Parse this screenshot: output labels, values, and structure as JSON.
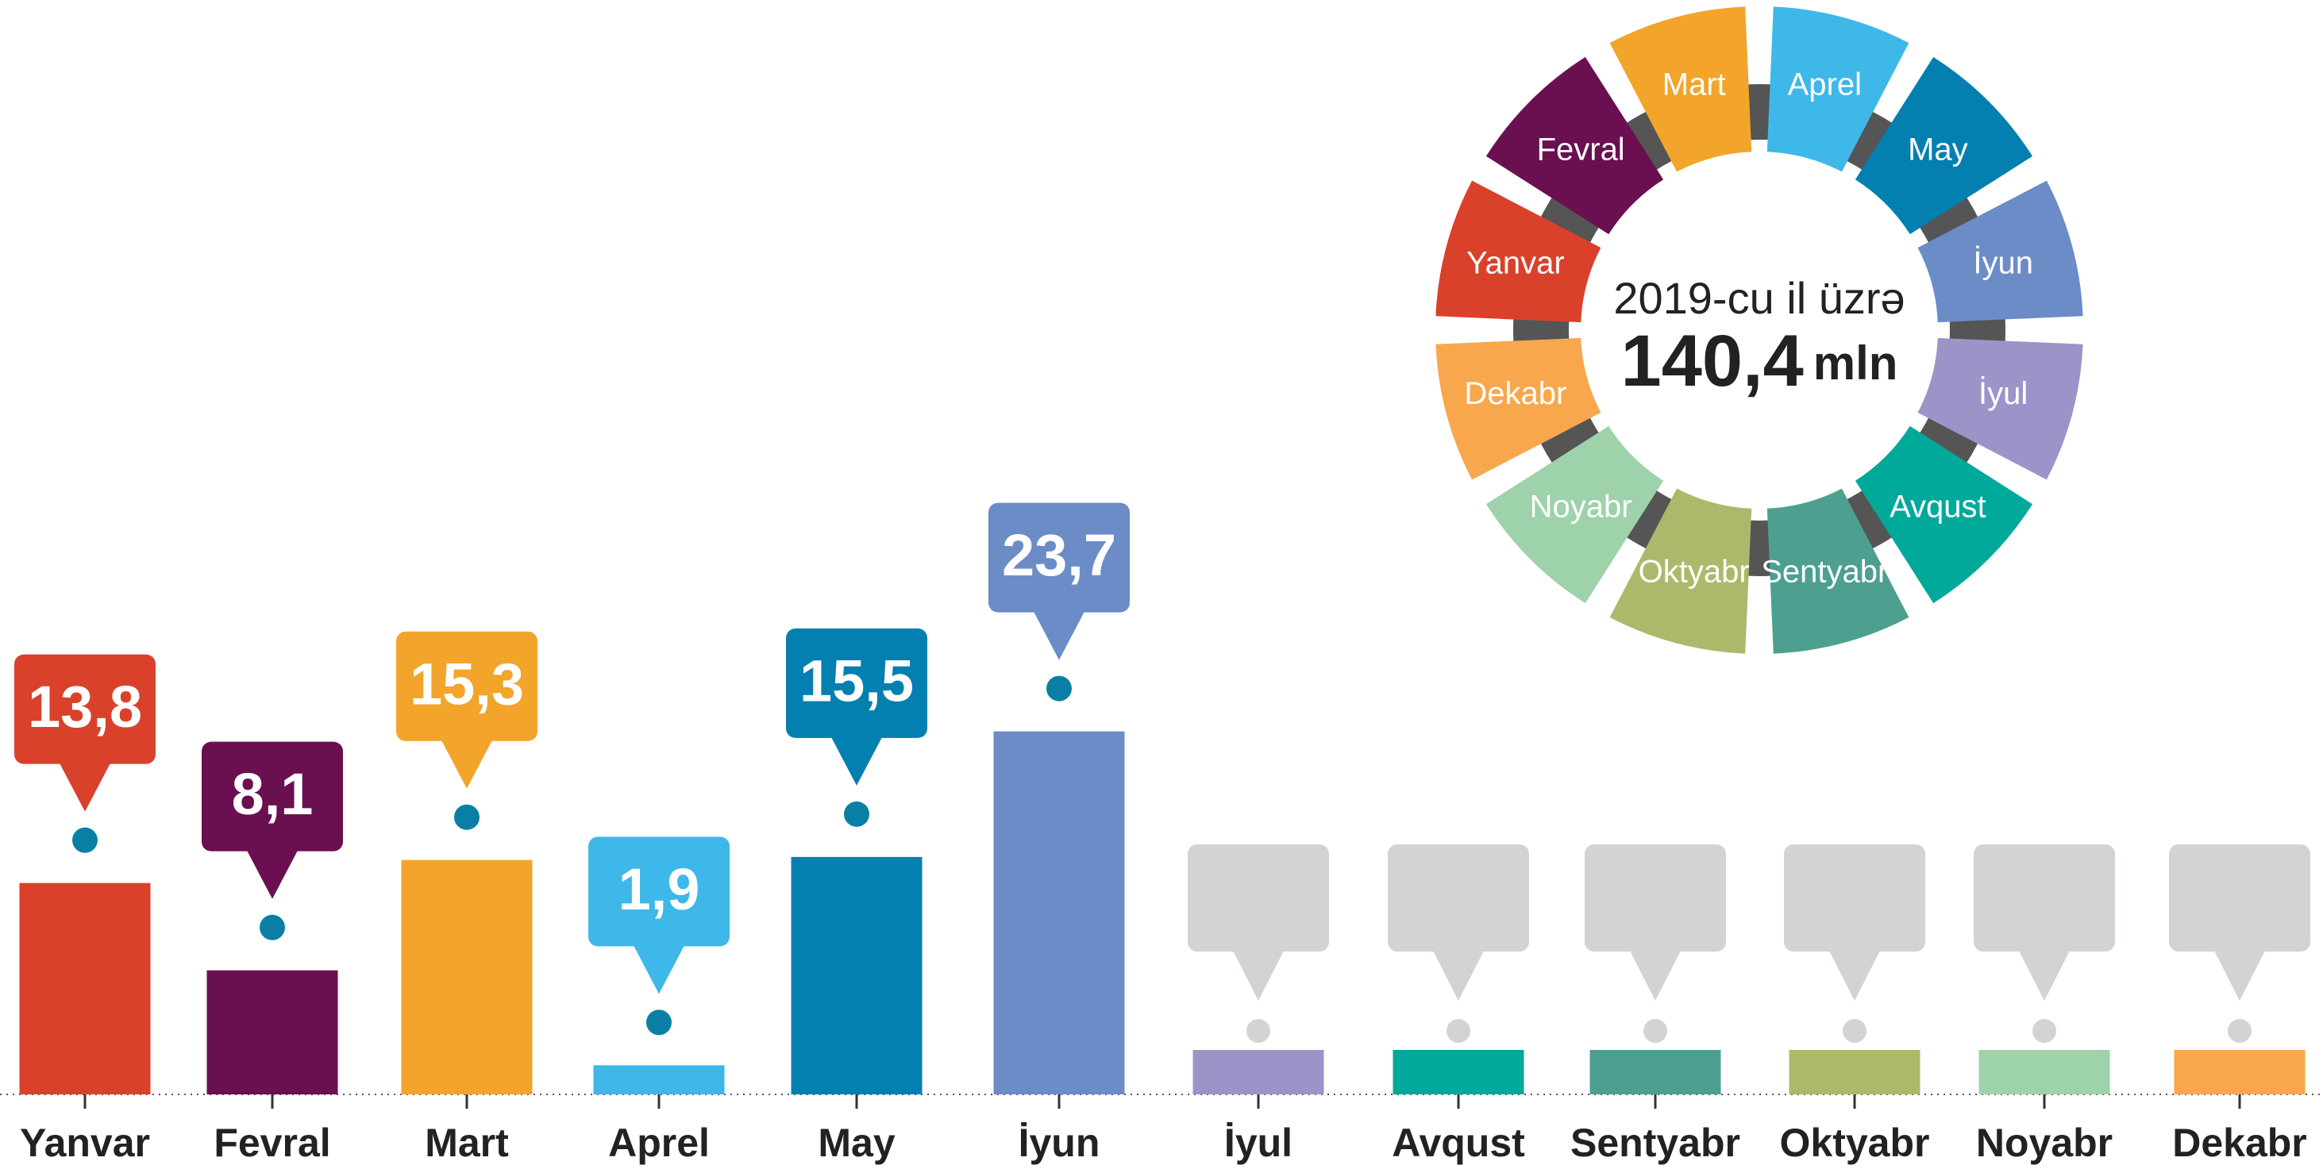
{
  "chart_data": {
    "type": "bar",
    "categories": [
      "Yanvar",
      "Fevral",
      "Mart",
      "Aprel",
      "May",
      "İyun",
      "İyul",
      "Avqust",
      "Sentyabr",
      "Oktyabr",
      "Noyabr",
      "Dekabr"
    ],
    "values": [
      13.8,
      8.1,
      15.3,
      1.9,
      15.5,
      23.7,
      null,
      null,
      null,
      null,
      null,
      null
    ],
    "value_labels": [
      "13,8",
      "8,1",
      "15,3",
      "1,9",
      "15,5",
      "23,7",
      null,
      null,
      null,
      null,
      null,
      null
    ],
    "colors": [
      "#d9412b",
      "#6a0f4f",
      "#f2a42b",
      "#3db8e8",
      "#0480b0",
      "#6b8cc7",
      "#9c94c9",
      "#00a99a",
      "#4da08f",
      "#adb86b",
      "#9dd2aa",
      "#f9a74c"
    ],
    "center_title": "2019-cu il üzrə",
    "total": 140.4,
    "total_label": "140,4",
    "total_unit": "mln"
  }
}
